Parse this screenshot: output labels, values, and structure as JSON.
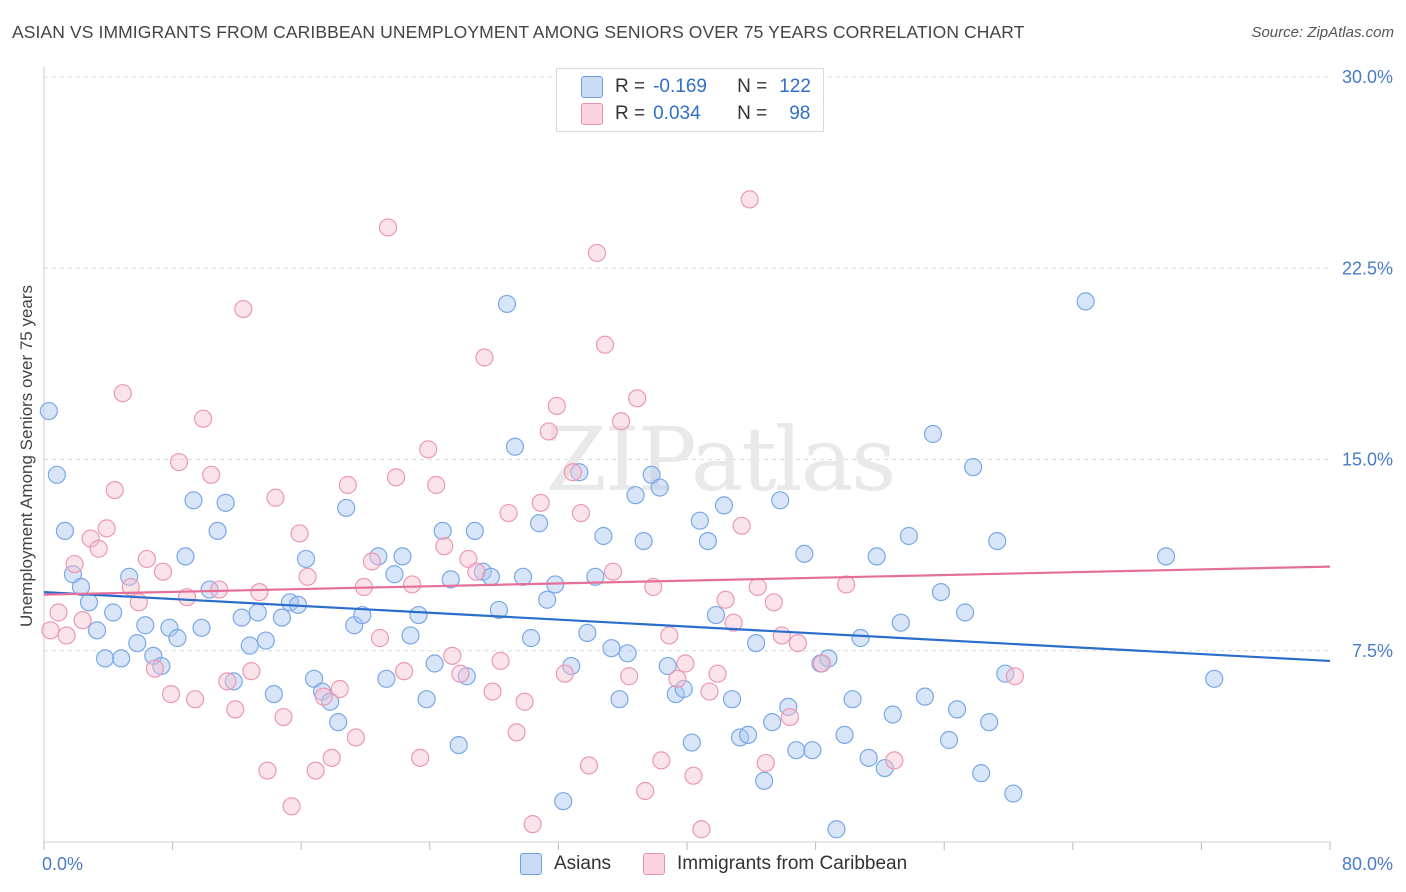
{
  "title": "ASIAN VS IMMIGRANTS FROM CARIBBEAN UNEMPLOYMENT AMONG SENIORS OVER 75 YEARS CORRELATION CHART",
  "source": "Source: ZipAtlas.com",
  "watermark": "ZIPatlas",
  "legend_top": {
    "rows": [
      {
        "r_label": "R =",
        "r_value": "-0.169",
        "n_label": "N =",
        "n_value": "122",
        "color": "#a9c6ef",
        "border": "#6f9fdc"
      },
      {
        "r_label": "R =",
        "r_value": "0.034",
        "n_label": "N =",
        "n_value": "98",
        "color": "#f7c0d1",
        "border": "#e990ad"
      }
    ]
  },
  "legend_bottom": [
    {
      "label": "Asians",
      "color": "#a9c6ef",
      "border": "#6f9fdc"
    },
    {
      "label": "Immigrants from Caribbean",
      "color": "#f7c0d1",
      "border": "#e990ad"
    }
  ],
  "chart_data": {
    "type": "scatter",
    "title": "ASIAN VS IMMIGRANTS FROM CARIBBEAN UNEMPLOYMENT AMONG SENIORS OVER 75 YEARS CORRELATION CHART",
    "ylabel": "Unemployment Among Seniors over 75 years",
    "xlabel": "",
    "xlim": [
      0,
      80
    ],
    "ylim": [
      0,
      30
    ],
    "x_tick_labels": [
      "0.0%",
      "80.0%"
    ],
    "y_ticks": [
      {
        "value": 7.5,
        "label": "7.5%"
      },
      {
        "value": 15.0,
        "label": "15.0%"
      },
      {
        "value": 22.5,
        "label": "22.5%"
      },
      {
        "value": 30.0,
        "label": "30.0%"
      }
    ],
    "series": [
      {
        "name": "Asians",
        "color": "#7aa8e6",
        "fill": "rgba(169,198,239,0.45)",
        "trend": {
          "x": [
            0,
            80
          ],
          "y": [
            9.8,
            7.1
          ],
          "color": "#2a6dcb"
        },
        "points": [
          [
            0.3,
            16.9
          ],
          [
            0.8,
            14.4
          ],
          [
            1.3,
            12.2
          ],
          [
            1.8,
            10.5
          ],
          [
            2.3,
            10.0
          ],
          [
            2.8,
            9.4
          ],
          [
            3.3,
            8.3
          ],
          [
            3.8,
            7.2
          ],
          [
            4.3,
            9.0
          ],
          [
            4.8,
            7.2
          ],
          [
            5.3,
            10.4
          ],
          [
            5.8,
            7.8
          ],
          [
            6.3,
            8.5
          ],
          [
            6.8,
            7.3
          ],
          [
            7.3,
            6.9
          ],
          [
            7.8,
            8.4
          ],
          [
            8.3,
            8.0
          ],
          [
            8.8,
            11.2
          ],
          [
            9.3,
            13.4
          ],
          [
            9.8,
            8.4
          ],
          [
            10.3,
            9.9
          ],
          [
            10.8,
            12.2
          ],
          [
            11.3,
            13.3
          ],
          [
            11.8,
            6.3
          ],
          [
            12.3,
            8.8
          ],
          [
            12.8,
            7.7
          ],
          [
            13.3,
            9.0
          ],
          [
            13.8,
            7.9
          ],
          [
            14.3,
            5.8
          ],
          [
            14.8,
            8.8
          ],
          [
            15.3,
            9.4
          ],
          [
            15.8,
            9.3
          ],
          [
            16.3,
            11.1
          ],
          [
            16.8,
            6.4
          ],
          [
            17.3,
            5.9
          ],
          [
            17.8,
            5.5
          ],
          [
            18.3,
            4.7
          ],
          [
            18.8,
            13.1
          ],
          [
            19.3,
            8.5
          ],
          [
            19.8,
            8.9
          ],
          [
            20.8,
            11.2
          ],
          [
            21.3,
            6.4
          ],
          [
            21.8,
            10.5
          ],
          [
            22.3,
            11.2
          ],
          [
            22.8,
            8.1
          ],
          [
            23.3,
            8.9
          ],
          [
            23.8,
            5.6
          ],
          [
            24.3,
            7.0
          ],
          [
            24.8,
            12.2
          ],
          [
            25.3,
            10.3
          ],
          [
            25.8,
            3.8
          ],
          [
            26.3,
            6.5
          ],
          [
            26.8,
            12.2
          ],
          [
            27.3,
            10.6
          ],
          [
            27.8,
            10.4
          ],
          [
            28.3,
            9.1
          ],
          [
            28.8,
            21.1
          ],
          [
            29.3,
            15.5
          ],
          [
            29.8,
            10.4
          ],
          [
            30.3,
            8.0
          ],
          [
            30.8,
            12.5
          ],
          [
            31.3,
            9.5
          ],
          [
            31.8,
            10.1
          ],
          [
            32.3,
            1.6
          ],
          [
            32.8,
            6.9
          ],
          [
            33.3,
            14.5
          ],
          [
            33.8,
            8.2
          ],
          [
            34.3,
            10.4
          ],
          [
            34.8,
            12.0
          ],
          [
            35.3,
            7.6
          ],
          [
            35.8,
            5.6
          ],
          [
            36.3,
            7.4
          ],
          [
            36.8,
            13.6
          ],
          [
            37.3,
            11.8
          ],
          [
            37.8,
            14.4
          ],
          [
            38.3,
            13.9
          ],
          [
            38.8,
            6.9
          ],
          [
            39.3,
            5.8
          ],
          [
            39.8,
            6.0
          ],
          [
            40.3,
            3.9
          ],
          [
            40.8,
            12.6
          ],
          [
            41.3,
            11.8
          ],
          [
            41.8,
            8.9
          ],
          [
            42.3,
            13.2
          ],
          [
            42.8,
            5.6
          ],
          [
            43.3,
            4.1
          ],
          [
            43.8,
            4.2
          ],
          [
            44.3,
            7.8
          ],
          [
            44.8,
            2.4
          ],
          [
            45.3,
            4.7
          ],
          [
            45.8,
            13.4
          ],
          [
            46.3,
            5.3
          ],
          [
            46.8,
            3.6
          ],
          [
            47.3,
            11.3
          ],
          [
            47.8,
            3.6
          ],
          [
            48.3,
            7.0
          ],
          [
            48.8,
            7.2
          ],
          [
            49.3,
            0.5
          ],
          [
            49.8,
            4.2
          ],
          [
            50.3,
            5.6
          ],
          [
            50.8,
            8.0
          ],
          [
            51.3,
            3.3
          ],
          [
            51.8,
            11.2
          ],
          [
            52.3,
            2.9
          ],
          [
            52.8,
            5.0
          ],
          [
            53.3,
            8.6
          ],
          [
            53.8,
            12.0
          ],
          [
            54.8,
            5.7
          ],
          [
            55.3,
            16.0
          ],
          [
            55.8,
            9.8
          ],
          [
            56.3,
            4.0
          ],
          [
            56.8,
            5.2
          ],
          [
            57.3,
            9.0
          ],
          [
            57.8,
            14.7
          ],
          [
            58.3,
            2.7
          ],
          [
            58.8,
            4.7
          ],
          [
            59.3,
            11.8
          ],
          [
            59.8,
            6.6
          ],
          [
            60.3,
            1.9
          ],
          [
            64.8,
            21.2
          ],
          [
            69.8,
            11.2
          ],
          [
            72.8,
            6.4
          ]
        ]
      },
      {
        "name": "Immigrants from Caribbean",
        "color": "#ec98b4",
        "fill": "rgba(247,192,209,0.45)",
        "trend": {
          "x": [
            0,
            80
          ],
          "y": [
            9.7,
            10.8
          ],
          "color": "#e4709a"
        },
        "points": [
          [
            0.4,
            8.3
          ],
          [
            0.9,
            9.0
          ],
          [
            1.4,
            8.1
          ],
          [
            1.9,
            10.9
          ],
          [
            2.4,
            8.7
          ],
          [
            2.9,
            11.9
          ],
          [
            3.4,
            11.5
          ],
          [
            3.9,
            12.3
          ],
          [
            4.4,
            13.8
          ],
          [
            4.9,
            17.6
          ],
          [
            5.4,
            10.0
          ],
          [
            5.9,
            9.4
          ],
          [
            6.4,
            11.1
          ],
          [
            6.9,
            6.8
          ],
          [
            7.4,
            10.6
          ],
          [
            7.9,
            5.8
          ],
          [
            8.4,
            14.9
          ],
          [
            8.9,
            9.6
          ],
          [
            9.4,
            5.6
          ],
          [
            9.9,
            16.6
          ],
          [
            10.4,
            14.4
          ],
          [
            10.9,
            9.9
          ],
          [
            11.4,
            6.3
          ],
          [
            11.9,
            5.2
          ],
          [
            12.4,
            20.9
          ],
          [
            12.9,
            6.7
          ],
          [
            13.4,
            9.8
          ],
          [
            13.9,
            2.8
          ],
          [
            14.4,
            13.5
          ],
          [
            14.9,
            4.9
          ],
          [
            15.4,
            1.4
          ],
          [
            15.9,
            12.1
          ],
          [
            16.4,
            10.4
          ],
          [
            16.9,
            2.8
          ],
          [
            17.4,
            5.7
          ],
          [
            17.9,
            3.3
          ],
          [
            18.4,
            6.0
          ],
          [
            18.9,
            14.0
          ],
          [
            19.4,
            4.1
          ],
          [
            19.9,
            10.0
          ],
          [
            20.4,
            11.0
          ],
          [
            20.9,
            8.0
          ],
          [
            21.4,
            24.1
          ],
          [
            21.9,
            14.3
          ],
          [
            22.4,
            6.7
          ],
          [
            22.9,
            10.1
          ],
          [
            23.4,
            3.3
          ],
          [
            23.9,
            15.4
          ],
          [
            24.4,
            14.0
          ],
          [
            24.9,
            11.6
          ],
          [
            25.4,
            7.3
          ],
          [
            25.9,
            6.6
          ],
          [
            26.4,
            11.1
          ],
          [
            26.9,
            10.6
          ],
          [
            27.4,
            19.0
          ],
          [
            27.9,
            5.9
          ],
          [
            28.4,
            7.1
          ],
          [
            28.9,
            12.9
          ],
          [
            29.4,
            4.3
          ],
          [
            29.9,
            5.5
          ],
          [
            30.4,
            0.7
          ],
          [
            30.9,
            13.3
          ],
          [
            31.4,
            16.1
          ],
          [
            31.9,
            17.1
          ],
          [
            32.4,
            6.6
          ],
          [
            32.9,
            14.5
          ],
          [
            33.4,
            12.9
          ],
          [
            33.9,
            3.0
          ],
          [
            34.4,
            23.1
          ],
          [
            34.9,
            19.5
          ],
          [
            35.4,
            10.6
          ],
          [
            35.9,
            16.5
          ],
          [
            36.4,
            6.5
          ],
          [
            36.9,
            17.4
          ],
          [
            37.4,
            2.0
          ],
          [
            37.9,
            10.0
          ],
          [
            38.4,
            3.2
          ],
          [
            38.9,
            8.1
          ],
          [
            39.4,
            6.4
          ],
          [
            39.9,
            7.0
          ],
          [
            40.4,
            2.6
          ],
          [
            40.9,
            0.5
          ],
          [
            41.4,
            5.9
          ],
          [
            41.9,
            6.6
          ],
          [
            42.4,
            9.5
          ],
          [
            42.9,
            8.6
          ],
          [
            43.4,
            12.4
          ],
          [
            43.9,
            25.2
          ],
          [
            44.4,
            10.0
          ],
          [
            44.9,
            3.1
          ],
          [
            45.4,
            9.4
          ],
          [
            45.9,
            8.1
          ],
          [
            46.4,
            4.9
          ],
          [
            46.9,
            7.8
          ],
          [
            48.4,
            7.0
          ],
          [
            49.9,
            10.1
          ],
          [
            52.9,
            3.2
          ],
          [
            60.4,
            6.5
          ]
        ]
      }
    ]
  }
}
